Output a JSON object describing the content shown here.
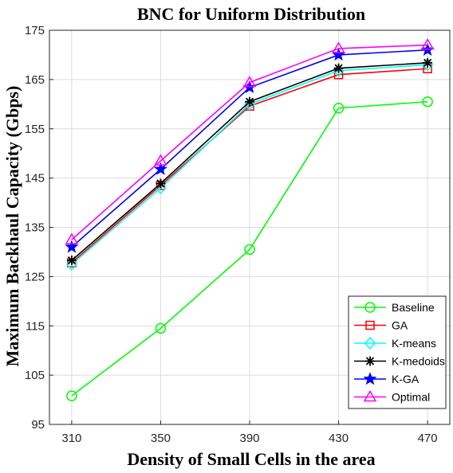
{
  "chart_data": {
    "type": "line",
    "title": "BNC for Uniform Distribution",
    "xlabel": "Density of Small Cells in the area",
    "ylabel": "Maximum Backhaul Capacity (Gbps)",
    "x": [
      310,
      350,
      390,
      430,
      470
    ],
    "xlim": [
      300,
      480
    ],
    "ylim": [
      95,
      175
    ],
    "xticks": [
      "310",
      "350",
      "390",
      "430",
      "470"
    ],
    "yticks": [
      "95",
      "105",
      "115",
      "125",
      "135",
      "145",
      "155",
      "165",
      "175"
    ],
    "grid": true,
    "legend_position": "bottom-right",
    "series": [
      {
        "name": "Baseline",
        "values": [
          100.8,
          114.5,
          130.5,
          159.2,
          160.5
        ],
        "color": "#00ff00",
        "marker": "circle"
      },
      {
        "name": "GA",
        "values": [
          127.8,
          143.5,
          159.6,
          166.0,
          167.2
        ],
        "color": "#ff0000",
        "marker": "square"
      },
      {
        "name": "K-means",
        "values": [
          127.5,
          143.0,
          160.0,
          166.8,
          168.0
        ],
        "color": "#00ffff",
        "marker": "diamond"
      },
      {
        "name": "K-medoids",
        "values": [
          128.3,
          143.9,
          160.5,
          167.3,
          168.4
        ],
        "color": "#000000",
        "marker": "asterisk"
      },
      {
        "name": "K-GA",
        "values": [
          131.0,
          146.8,
          163.4,
          170.0,
          171.0
        ],
        "color": "#0000ff",
        "marker": "star"
      },
      {
        "name": "Optimal",
        "values": [
          132.5,
          148.5,
          164.4,
          171.3,
          172.0
        ],
        "color": "#ff00ff",
        "marker": "triangle"
      }
    ]
  }
}
